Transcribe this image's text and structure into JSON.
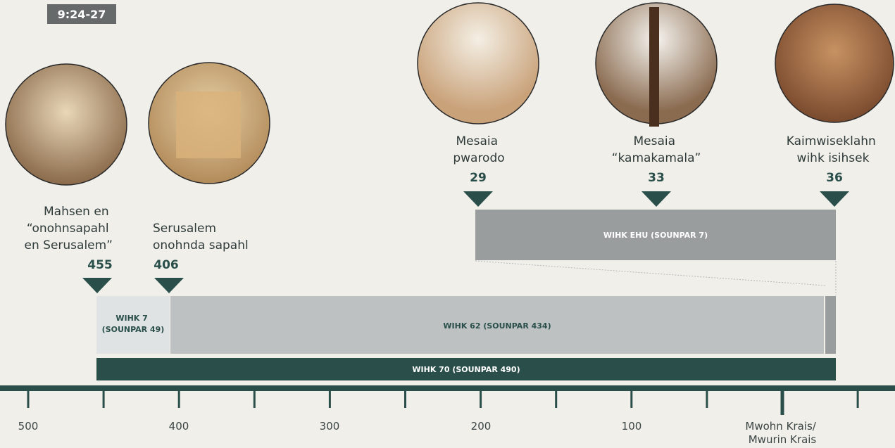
{
  "reference": "9:24-27",
  "events": [
    {
      "lines": [
        "Mahsen en",
        "“onohnsapahl",
        "en Serusalem”"
      ],
      "year": "455"
    },
    {
      "lines": [
        "Serusalem",
        "onohnda sapahl"
      ],
      "year": "406"
    },
    {
      "lines": [
        "Mesaia",
        "pwarodo"
      ],
      "year": "29"
    },
    {
      "lines": [
        "Mesaia",
        "“kamakamala”"
      ],
      "year": "33"
    },
    {
      "lines": [
        "Kaimwiseklahn",
        "wihk isihsek"
      ],
      "year": "36"
    }
  ],
  "periods": {
    "last_week": "WIHK EHU (SOUNPAR 7)",
    "seven_weeks": [
      "WIHK 7",
      "(SOUNPAR 49)"
    ],
    "sixty_two_weeks": "WIHK 62 (SOUNPAR 434)",
    "seventy_weeks": "WIHK 70 (SOUNPAR 490)"
  },
  "axis_labels": [
    "500",
    "400",
    "300",
    "200",
    "100",
    [
      "Mwohn Krais/",
      "Mwurin Krais"
    ]
  ]
}
